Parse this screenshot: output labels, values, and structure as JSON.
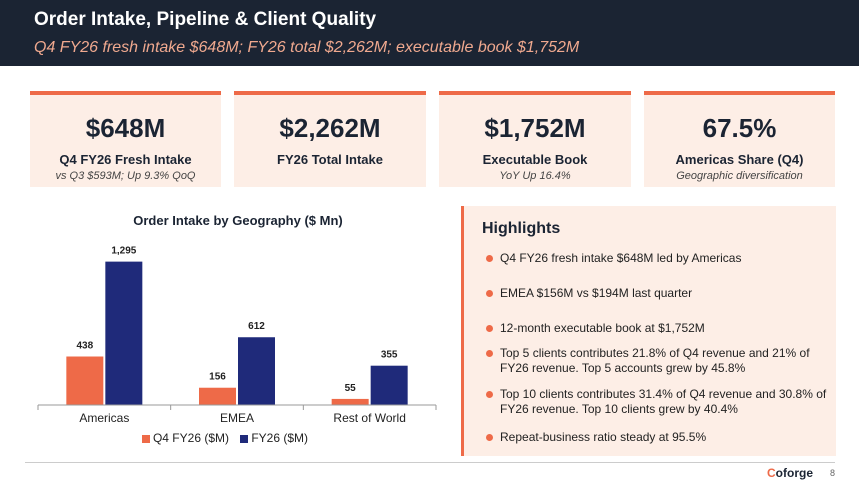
{
  "header": {
    "title": "Order Intake, Pipeline & Client Quality",
    "subtitle": "Q4 FY26 fresh intake $648M; FY26 total $2,262M; executable book $1,752M"
  },
  "kpis": [
    {
      "value": "$648M",
      "label": "Q4 FY26 Fresh Intake",
      "note": "vs Q3 $593M; Up 9.3% QoQ"
    },
    {
      "value": "$2,262M",
      "label": "FY26 Total Intake",
      "note": ""
    },
    {
      "value": "$1,752M",
      "label": "Executable Book",
      "note": "YoY Up 16.4%"
    },
    {
      "value": "67.5%",
      "label": "Americas Share (Q4)",
      "note": "Geographic diversification"
    }
  ],
  "chart_data": {
    "type": "bar",
    "title": "Order Intake by Geography ($ Mn)",
    "categories": [
      "Americas",
      "EMEA",
      "Rest of World"
    ],
    "series": [
      {
        "name": "Q4 FY26 ($M)",
        "values": [
          438,
          156,
          55
        ],
        "labels": [
          "438",
          "156",
          "55"
        ],
        "color": "#ee6a48"
      },
      {
        "name": "FY26 ($M)",
        "values": [
          1295,
          612,
          355
        ],
        "labels": [
          "1,295",
          "612",
          "355"
        ],
        "color": "#1f2a7a"
      }
    ],
    "ylim": [
      0,
      1400
    ],
    "grid": false,
    "legend": "bottom"
  },
  "highlights": {
    "title": "Highlights",
    "items": [
      "Q4 FY26 fresh intake $648M led by Americas",
      "EMEA $156M vs $194M last quarter",
      "12-month executable book at $1,752M",
      "Top 5 clients contributes 21.8% of Q4 revenue and 21% of FY26 revenue. Top 5 accounts grew by 45.8%",
      "Top 10 clients contributes 31.4% of Q4 revenue and 30.8% of FY26 revenue. Top 10 clients grew by 40.4%",
      "Repeat-business ratio steady at 95.5%"
    ]
  },
  "footer": {
    "brand_first": "C",
    "brand_rest": "oforge",
    "page": "8"
  }
}
